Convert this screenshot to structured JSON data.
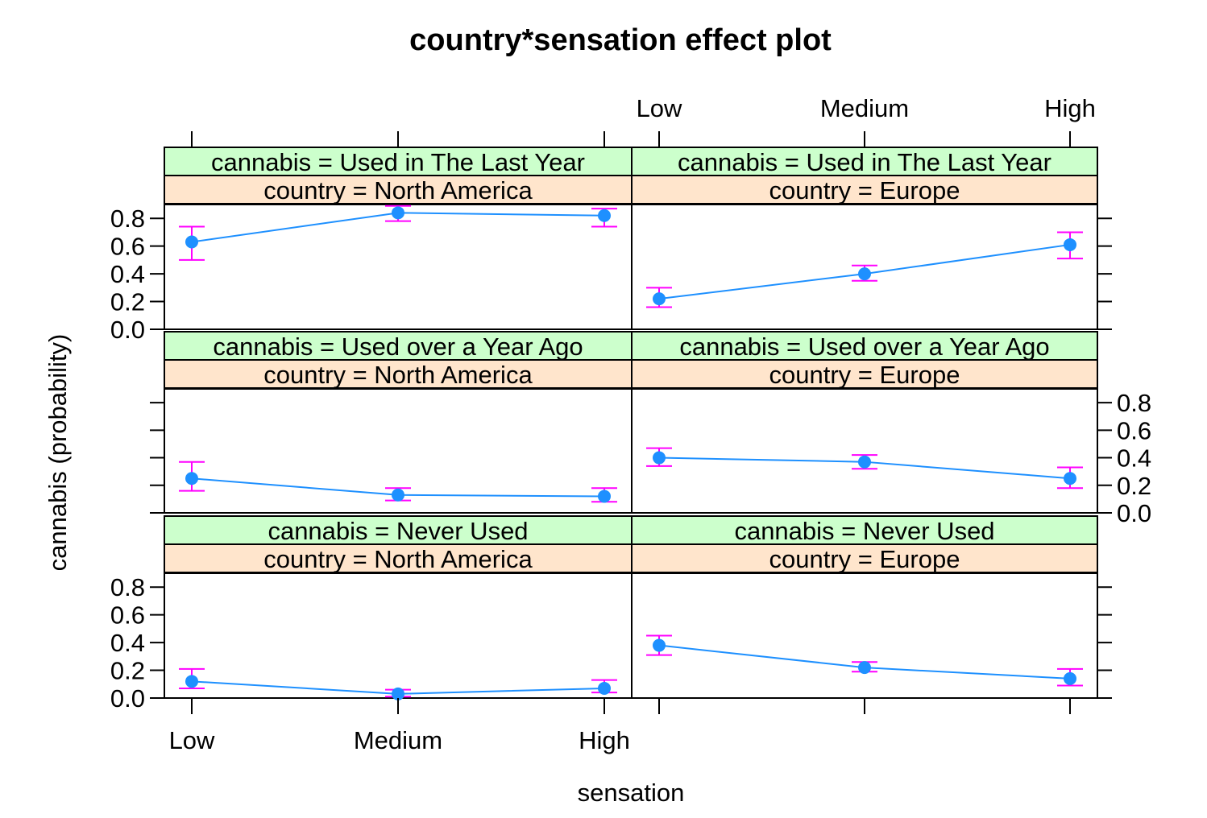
{
  "chart_data": {
    "type": "line",
    "title": "country*sensation effect plot",
    "xlabel": "sensation",
    "ylabel": "cannabis (probability)",
    "categories": [
      "Low",
      "Medium",
      "High"
    ],
    "ylim": [
      0,
      0.9
    ],
    "yticks": [
      "0.0",
      "0.2",
      "0.4",
      "0.6",
      "0.8"
    ],
    "line_color": "#1e90ff",
    "point_color": "#1e90ff",
    "errorbar_color": "#ff00ff",
    "strip_top_color": "#ccffcc",
    "strip_bottom_color": "#ffe5cc",
    "panels": [
      {
        "strip_top": "cannabis = Used in The Last Year",
        "strip_bottom": "country = North America",
        "values": [
          0.63,
          0.84,
          0.82
        ],
        "lower": [
          0.5,
          0.78,
          0.74
        ],
        "upper": [
          0.74,
          0.89,
          0.87
        ]
      },
      {
        "strip_top": "cannabis = Used in The Last Year",
        "strip_bottom": "country = Europe",
        "values": [
          0.22,
          0.4,
          0.61
        ],
        "lower": [
          0.16,
          0.35,
          0.51
        ],
        "upper": [
          0.3,
          0.46,
          0.7
        ]
      },
      {
        "strip_top": "cannabis = Used over a Year Ago",
        "strip_bottom": "country = North America",
        "values": [
          0.25,
          0.13,
          0.12
        ],
        "lower": [
          0.16,
          0.09,
          0.08
        ],
        "upper": [
          0.37,
          0.18,
          0.18
        ]
      },
      {
        "strip_top": "cannabis = Used over a Year Ago",
        "strip_bottom": "country = Europe",
        "values": [
          0.4,
          0.37,
          0.25
        ],
        "lower": [
          0.34,
          0.32,
          0.18
        ],
        "upper": [
          0.47,
          0.42,
          0.33
        ]
      },
      {
        "strip_top": "cannabis = Never Used",
        "strip_bottom": "country = North America",
        "values": [
          0.12,
          0.03,
          0.07
        ],
        "lower": [
          0.07,
          0.01,
          0.04
        ],
        "upper": [
          0.21,
          0.06,
          0.13
        ]
      },
      {
        "strip_top": "cannabis = Never Used",
        "strip_bottom": "country = Europe",
        "values": [
          0.38,
          0.22,
          0.14
        ],
        "lower": [
          0.31,
          0.19,
          0.09
        ],
        "upper": [
          0.45,
          0.26,
          0.21
        ]
      }
    ]
  }
}
